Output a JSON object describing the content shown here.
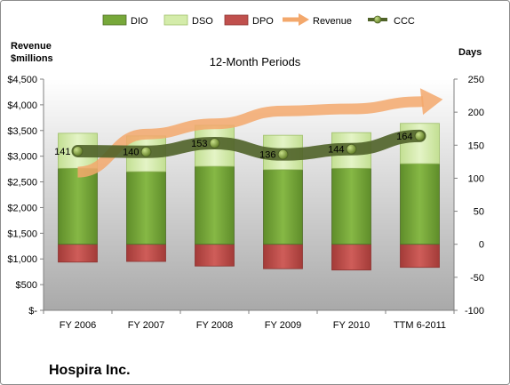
{
  "chart_data": {
    "type": "bar",
    "title": "12-Month Periods",
    "company": "Hospira Inc.",
    "categories": [
      "FY 2006",
      "FY 2007",
      "FY 2008",
      "FY 2009",
      "FY 2010",
      "TTM 6-2011"
    ],
    "left_axis": {
      "title_line1": "Revenue",
      "title_line2": "$millions",
      "ylim": [
        0,
        4500
      ],
      "ticks": [
        0,
        500,
        1000,
        1500,
        2000,
        2500,
        3000,
        3500,
        4000,
        4500
      ],
      "tick_labels": [
        "$-",
        "$500",
        "$1,000",
        "$1,500",
        "$2,000",
        "$2,500",
        "$3,000",
        "$3,500",
        "$4,000",
        "$4,500"
      ]
    },
    "right_axis": {
      "title": "Days",
      "ylim": [
        -100,
        250
      ],
      "ticks": [
        -100,
        -50,
        0,
        50,
        100,
        150,
        200,
        250
      ],
      "tick_labels": [
        "-100",
        "-50",
        "0",
        "50",
        "100",
        "150",
        "200",
        "250"
      ]
    },
    "legend": {
      "placement": "top",
      "items": [
        {
          "key": "dio",
          "label": "DIO"
        },
        {
          "key": "dso",
          "label": "DSO"
        },
        {
          "key": "dpo",
          "label": "DPO"
        },
        {
          "key": "revenue",
          "label": "Revenue"
        },
        {
          "key": "ccc",
          "label": "CCC"
        }
      ]
    },
    "series": [
      {
        "name": "DIO",
        "axis": "right",
        "values": [
          115,
          110,
          118,
          113,
          115,
          122
        ]
      },
      {
        "name": "DSO",
        "axis": "right",
        "values": [
          53,
          54,
          62,
          52,
          54,
          61
        ]
      },
      {
        "name": "DPO",
        "axis": "right",
        "values": [
          -27,
          -26,
          -33,
          -37,
          -39,
          -35
        ]
      },
      {
        "name": "Revenue",
        "axis": "left",
        "values": [
          2690,
          3430,
          3630,
          3880,
          3920,
          4060
        ]
      },
      {
        "name": "CCC",
        "axis": "right",
        "values": [
          141,
          140,
          153,
          136,
          144,
          164
        ]
      }
    ],
    "ccc_labels": [
      "141",
      "140",
      "153",
      "136",
      "144",
      "164"
    ],
    "colors": {
      "dio": "#77a83a",
      "dso": "#d4ecaa",
      "dpo": "#c0504d",
      "revenue": "#f3a86c",
      "ccc": "#4f6228"
    },
    "grid": false
  }
}
